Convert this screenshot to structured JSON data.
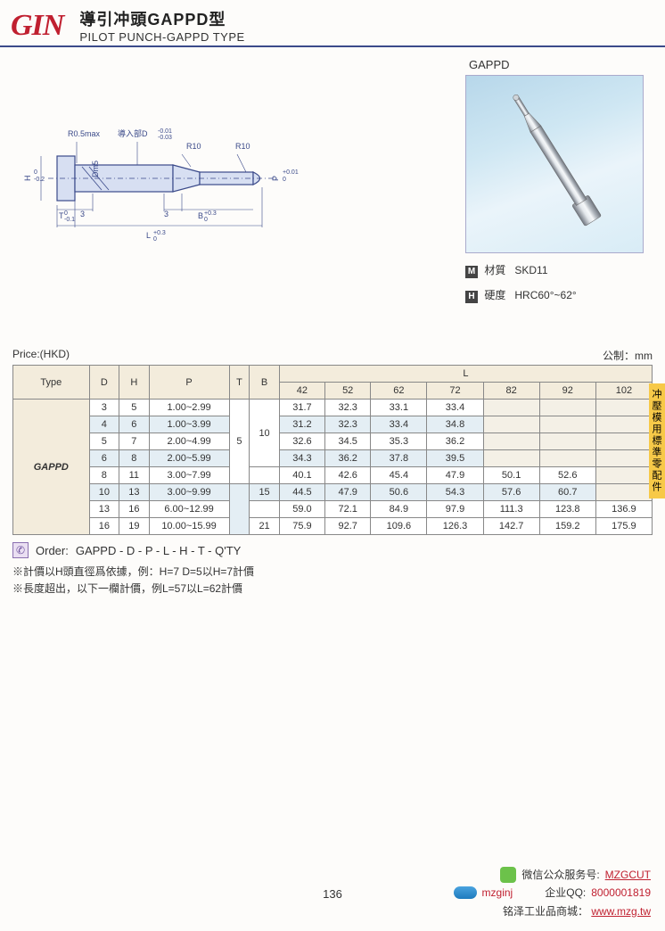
{
  "header": {
    "logo": "GIN",
    "title_cn": "導引冲頭GAPPD型",
    "title_en": "PILOT PUNCH-GAPPD TYPE"
  },
  "diagram_labels": {
    "r05": "R0.5max",
    "lead": "導入部D",
    "lead_tol": "-0.01\n-0.03",
    "r10a": "R10",
    "r10b": "R10",
    "H": "H -0.2",
    "T": "T -0.1",
    "Dm5": "Dm5",
    "three_a": "3",
    "three_b": "3",
    "B": "B +0.3",
    "P": "P +0.01",
    "L": "L +0.3"
  },
  "photo_label": "GAPPD",
  "specs": {
    "material_badge": "M",
    "material_label": "材質",
    "material_value": "SKD11",
    "hardness_badge": "H",
    "hardness_label": "硬度",
    "hardness_value": "HRC60°~62°"
  },
  "price_label": "Price:(HKD)",
  "unit_label": "公制：mm",
  "side_tab": "冲壓模用標準零配件",
  "table": {
    "head": {
      "type": "Type",
      "D": "D",
      "H": "H",
      "P": "P",
      "T": "T",
      "B": "B",
      "L": "L",
      "L_cols": [
        "42",
        "52",
        "62",
        "72",
        "82",
        "92",
        "102"
      ]
    },
    "type_value": "GAPPD",
    "rows": [
      {
        "D": "3",
        "H": "5",
        "P": "1.00~2.99",
        "T": "",
        "B": "",
        "L": [
          "31.7",
          "32.3",
          "33.1",
          "33.4",
          "",
          "",
          ""
        ]
      },
      {
        "D": "4",
        "H": "6",
        "P": "1.00~3.99",
        "T": "",
        "B": "",
        "L": [
          "31.2",
          "32.3",
          "33.4",
          "34.8",
          "",
          "",
          ""
        ],
        "tint": true
      },
      {
        "D": "5",
        "H": "7",
        "P": "2.00~4.99",
        "T": "",
        "B": "10",
        "L": [
          "32.6",
          "34.5",
          "35.3",
          "36.2",
          "",
          "",
          ""
        ]
      },
      {
        "D": "6",
        "H": "8",
        "P": "2.00~5.99",
        "T": "",
        "B": "",
        "L": [
          "34.3",
          "36.2",
          "37.8",
          "39.5",
          "",
          "",
          ""
        ],
        "tint": true
      },
      {
        "D": "8",
        "H": "11",
        "P": "3.00~7.99",
        "T": "5",
        "B": "",
        "L": [
          "40.1",
          "42.6",
          "45.4",
          "47.9",
          "50.1",
          "52.6",
          ""
        ]
      },
      {
        "D": "10",
        "H": "13",
        "P": "3.00~9.99",
        "T": "",
        "B": "15",
        "L": [
          "44.5",
          "47.9",
          "50.6",
          "54.3",
          "57.6",
          "60.7",
          ""
        ],
        "tint": true
      },
      {
        "D": "13",
        "H": "16",
        "P": "6.00~12.99",
        "T": "",
        "B": "",
        "L": [
          "59.0",
          "72.1",
          "84.9",
          "97.9",
          "111.3",
          "123.8",
          "136.9"
        ]
      },
      {
        "D": "16",
        "H": "19",
        "P": "10.00~15.99",
        "T": "",
        "B": "21",
        "L": [
          "75.9",
          "92.7",
          "109.6",
          "126.3",
          "142.7",
          "159.2",
          "175.9"
        ]
      }
    ]
  },
  "order": {
    "label": "Order:",
    "pattern": [
      "GAPPD",
      "-",
      "D",
      "-",
      "P",
      "-",
      "L",
      "-",
      "H",
      "-",
      "T",
      "-",
      "Q'TY"
    ]
  },
  "notes": {
    "n1": "※計價以H頭直徑爲依據，例：H=7 D=5以H=7計價",
    "n2": "※長度超出，以下一欄計價，例L=57以L=62計價"
  },
  "page_number": "136",
  "footer": {
    "wechat_label": "微信公众服务号:",
    "wechat_value": "MZGCUT",
    "skype_value": "mzginj",
    "qq_label": "企业QQ:",
    "qq_value": "8000001819",
    "mall_label": "铭泽工业品商城：",
    "mall_value": "www.mzg.tw"
  }
}
